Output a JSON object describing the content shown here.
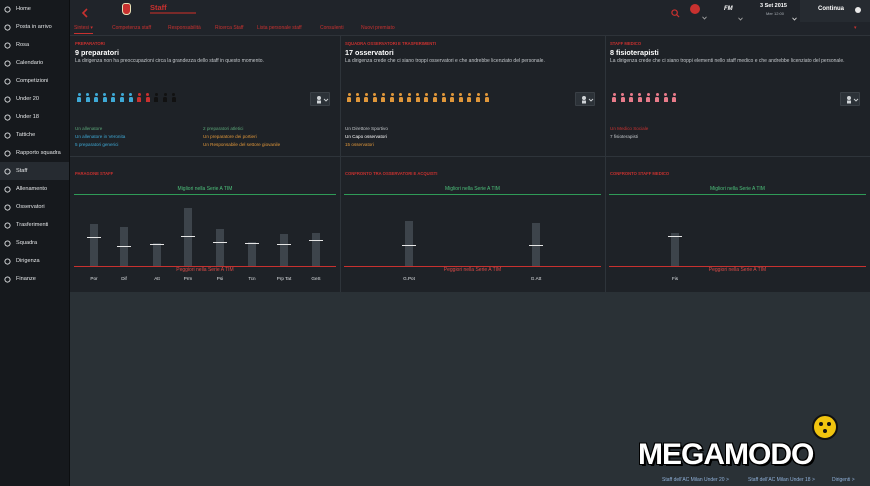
{
  "sidebar": {
    "items": [
      {
        "label": "Home",
        "icon": "home-icon"
      },
      {
        "label": "Posta in arrivo",
        "icon": "inbox-icon"
      },
      {
        "label": "Rosa",
        "icon": "squad-icon"
      },
      {
        "label": "Calendario",
        "icon": "calendar-icon"
      },
      {
        "label": "Competizioni",
        "icon": "trophy-icon"
      },
      {
        "label": "Under 20",
        "icon": "youth-icon"
      },
      {
        "label": "Under 18",
        "icon": "youth-icon"
      },
      {
        "label": "Tattiche",
        "icon": "tactics-icon"
      },
      {
        "label": "Rapporto squadra",
        "icon": "report-icon"
      },
      {
        "label": "Staff",
        "icon": "staff-icon",
        "active": true
      },
      {
        "label": "Allenamento",
        "icon": "training-icon"
      },
      {
        "label": "Osservatori",
        "icon": "scouting-icon"
      },
      {
        "label": "Trasferimenti",
        "icon": "transfers-icon"
      },
      {
        "label": "Squadra",
        "icon": "club-icon"
      },
      {
        "label": "Dirigenza",
        "icon": "board-icon"
      },
      {
        "label": "Finanze",
        "icon": "finances-icon"
      }
    ]
  },
  "header": {
    "title": "Staff",
    "date": "3 Set 2015",
    "date_sub": "Mer 12:00",
    "fm_label": "FM",
    "continue_label": "Continua"
  },
  "tabs": [
    "Sintesi",
    "Competenza staff",
    "Responsabilità",
    "Ricerca Staff",
    "Lista personale staff",
    "Consulenti",
    "Nuovi premiato"
  ],
  "sections": [
    {
      "title": "PREPARATORI",
      "count": "9 preparatori",
      "desc": "La dirigenza non ha preoccupazioni circa la grandezza dello staff in questo momento.",
      "fig_colors": [
        "#3ea9d6",
        "#3ea9d6",
        "#3ea9d6",
        "#3ea9d6",
        "#3ea9d6",
        "#3ea9d6",
        "#3ea9d6",
        "#c8312f",
        "#c8312f",
        "#111111",
        "#111111",
        "#111111"
      ],
      "left_lines": [
        {
          "text": "Un allenatore",
          "color": "#5aa577"
        },
        {
          "text": "Un allenatore in Veronita",
          "color": "#3ea9d6"
        },
        {
          "text": "5 preparatori generici",
          "color": "#3ea9d6"
        }
      ],
      "right_lines": [
        {
          "text": "2 preparatori atletici",
          "color": "#5aa577"
        },
        {
          "text": "Un preparatore dei portieri",
          "color": "#e0973a"
        },
        {
          "text": "Un Responsabile del settore giovanile",
          "color": "#e0973a"
        }
      ]
    },
    {
      "title": "SQUADRA OSSERVATORI E TRASFERIMENTI",
      "count": "17 osservatori",
      "desc": "La dirigenza crede che ci siano troppi osservatori e che andrebbe licenziato del personale.",
      "fig_colors": [
        "#e0973a",
        "#e0973a",
        "#e0973a",
        "#e0973a",
        "#e0973a",
        "#e0973a",
        "#e0973a",
        "#e0973a",
        "#e0973a",
        "#e0973a",
        "#e0973a",
        "#e0973a",
        "#e0973a",
        "#e0973a",
        "#e0973a",
        "#e0973a",
        "#e0973a"
      ],
      "left_lines": [
        {
          "text": "Un Direttore Sportivo",
          "color": "#c3c7cb"
        },
        {
          "text": "Un Capo osservatori",
          "color": "#ffffff"
        },
        {
          "text": "15 osservatori",
          "color": "#e0973a"
        }
      ],
      "right_lines": []
    },
    {
      "title": "STAFF MEDICO",
      "count": "8 fisioterapisti",
      "desc": "La dirigenza crede che ci siano troppi elementi nello staff medico e che andrebbe licenziato del personale.",
      "fig_colors": [
        "#e87b8a",
        "#e87b8a",
        "#e87b8a",
        "#e87b8a",
        "#e87b8a",
        "#e87b8a",
        "#e87b8a",
        "#e87b8a"
      ],
      "left_lines": [
        {
          "text": "Un Medico Sociale",
          "color": "#c8312f"
        },
        {
          "text": "7 fisioterapisti",
          "color": "#c3c7cb"
        }
      ],
      "right_lines": []
    }
  ],
  "chart_data": [
    {
      "type": "bar",
      "title": "PARAGONE STAFF",
      "categories": [
        "Por",
        "Dif",
        "Att",
        "Prm",
        "Psi",
        "Tcn",
        "Prp Tat",
        "GeS"
      ],
      "values": [
        0.4,
        0.28,
        0.3,
        0.42,
        0.33,
        0.32,
        0.31,
        0.36
      ],
      "range_top": [
        0.58,
        0.54,
        0.32,
        0.8,
        0.52,
        0.34,
        0.44,
        0.46
      ],
      "top_label": "Migliori nella Serie A TIM",
      "bottom_label": "Peggiori nella Serie A TIM"
    },
    {
      "type": "bar",
      "title": "CONFRONTO TRA OSSERVATORI E ACQUISTI",
      "categories": [
        "G.Pot",
        "G.Att"
      ],
      "values": [
        0.29,
        0.29
      ],
      "range_top": [
        0.62,
        0.6
      ],
      "top_label": "Migliori nella Serie A TIM",
      "bottom_label": "Peggiori nella Serie A TIM"
    },
    {
      "type": "bar",
      "title": "CONFRONTO STAFF MEDICO",
      "categories": [
        "Fis"
      ],
      "values": [
        0.41
      ],
      "range_top": [
        0.46
      ],
      "top_label": "Migliori nella Serie A TIM",
      "bottom_label": "Peggiori nella Serie A TIM"
    }
  ],
  "footer": {
    "links": [
      "Staff dell'AC Milan Under 20 >",
      "Staff dell'AC Milan Under 18 >",
      "Dirigenti >"
    ]
  },
  "watermark": "MEGAMODO"
}
